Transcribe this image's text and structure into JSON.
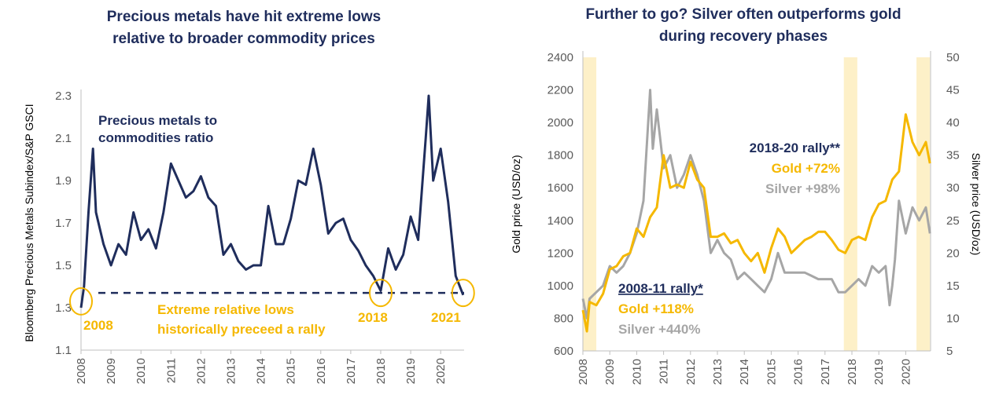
{
  "colors": {
    "navy": "#1f2d5c",
    "gold": "#f5b800",
    "silver": "#a6a6a6",
    "band": "#fdf0c8",
    "axis": "#bfbfbf"
  },
  "chart_data": [
    {
      "type": "line",
      "title": [
        "Precious metals have hit extreme lows",
        "relative to broader commodity prices"
      ],
      "ylabel": "Bloomberg Precious Metals Subindex/S&P GSCI",
      "ylim": [
        1.1,
        2.3
      ],
      "yticks": [
        "1.1",
        "1.3",
        "1.5",
        "1.7",
        "1.9",
        "2.1",
        "2.3"
      ],
      "xticks": [
        "2008",
        "2009",
        "2010",
        "2011",
        "2012",
        "2013",
        "2014",
        "2015",
        "2016",
        "2017",
        "2018",
        "2019",
        "2020"
      ],
      "grid": false,
      "series": [
        {
          "name": "Precious metals to commodities ratio",
          "color": "#1f2d5c",
          "x": [
            2008.0,
            2008.1,
            2008.25,
            2008.4,
            2008.5,
            2008.75,
            2009.0,
            2009.25,
            2009.5,
            2009.75,
            2010.0,
            2010.25,
            2010.5,
            2010.75,
            2011.0,
            2011.25,
            2011.5,
            2011.75,
            2012.0,
            2012.25,
            2012.5,
            2012.75,
            2013.0,
            2013.25,
            2013.5,
            2013.75,
            2014.0,
            2014.25,
            2014.5,
            2014.75,
            2015.0,
            2015.25,
            2015.5,
            2015.75,
            2016.0,
            2016.25,
            2016.5,
            2016.75,
            2017.0,
            2017.25,
            2017.5,
            2017.75,
            2018.0,
            2018.25,
            2018.5,
            2018.75,
            2019.0,
            2019.25,
            2019.5,
            2019.6,
            2019.75,
            2020.0,
            2020.25,
            2020.5,
            2020.75
          ],
          "y": [
            1.3,
            1.4,
            1.75,
            2.05,
            1.75,
            1.6,
            1.5,
            1.6,
            1.55,
            1.75,
            1.62,
            1.67,
            1.58,
            1.75,
            1.98,
            1.9,
            1.82,
            1.85,
            1.92,
            1.82,
            1.78,
            1.55,
            1.6,
            1.52,
            1.48,
            1.5,
            1.5,
            1.78,
            1.6,
            1.6,
            1.72,
            1.9,
            1.88,
            2.05,
            1.88,
            1.65,
            1.7,
            1.72,
            1.62,
            1.57,
            1.5,
            1.45,
            1.38,
            1.58,
            1.48,
            1.55,
            1.73,
            1.62,
            2.1,
            2.3,
            1.9,
            2.05,
            1.8,
            1.45,
            1.36
          ]
        }
      ],
      "reference_line": {
        "y": 1.37,
        "style": "dashed"
      },
      "annotations": {
        "series_label": [
          "Precious metals to",
          "commodities ratio"
        ],
        "lows_label": [
          "Extreme relative lows",
          "historically preceed a rally"
        ],
        "circles": [
          {
            "label": "2008",
            "x": 2008.0,
            "y": 1.33
          },
          {
            "label": "2018",
            "x": 2018.0,
            "y": 1.37
          },
          {
            "label": "2021",
            "x": 2020.75,
            "y": 1.37
          }
        ]
      }
    },
    {
      "type": "line",
      "title": [
        "Further to go? Silver often outperforms gold",
        "during recovery phases"
      ],
      "ylabel": "Gold price (USD/oz)",
      "y2label": "Silver price (USD/oz)",
      "ylim": [
        600,
        2400
      ],
      "y2lim": [
        5,
        50
      ],
      "yticks": [
        "600",
        "800",
        "1000",
        "1200",
        "1400",
        "1600",
        "1800",
        "2000",
        "2200",
        "2400"
      ],
      "y2ticks": [
        "5",
        "10",
        "15",
        "20",
        "25",
        "30",
        "35",
        "40",
        "45",
        "50"
      ],
      "xticks": [
        "2008",
        "2009",
        "2010",
        "2011",
        "2012",
        "2013",
        "2014",
        "2015",
        "2016",
        "2017",
        "2018",
        "2019",
        "2020"
      ],
      "grid": false,
      "shaded_periods": [
        [
          2008.0,
          2008.5
        ],
        [
          2017.7,
          2018.2
        ],
        [
          2020.4,
          2020.9
        ]
      ],
      "series": [
        {
          "name": "Gold",
          "axis": "left",
          "color": "#f5b800",
          "x": [
            2008.0,
            2008.15,
            2008.25,
            2008.5,
            2008.75,
            2009.0,
            2009.25,
            2009.5,
            2009.75,
            2010.0,
            2010.25,
            2010.5,
            2010.75,
            2011.0,
            2011.25,
            2011.5,
            2011.75,
            2012.0,
            2012.25,
            2012.5,
            2012.75,
            2013.0,
            2013.25,
            2013.5,
            2013.75,
            2014.0,
            2014.25,
            2014.5,
            2014.75,
            2015.0,
            2015.25,
            2015.5,
            2015.75,
            2016.0,
            2016.25,
            2016.5,
            2016.75,
            2017.0,
            2017.25,
            2017.5,
            2017.75,
            2018.0,
            2018.25,
            2018.5,
            2018.75,
            2019.0,
            2019.25,
            2019.5,
            2019.75,
            2020.0,
            2020.25,
            2020.5,
            2020.75,
            2020.9
          ],
          "y": [
            850,
            720,
            900,
            880,
            950,
            1100,
            1120,
            1180,
            1200,
            1350,
            1300,
            1420,
            1480,
            1800,
            1600,
            1620,
            1600,
            1760,
            1650,
            1600,
            1300,
            1300,
            1320,
            1260,
            1280,
            1200,
            1150,
            1200,
            1080,
            1230,
            1350,
            1300,
            1200,
            1240,
            1280,
            1300,
            1330,
            1330,
            1280,
            1220,
            1200,
            1280,
            1300,
            1280,
            1420,
            1500,
            1520,
            1650,
            1700,
            2050,
            1880,
            1800,
            1880,
            1750
          ]
        },
        {
          "name": "Silver",
          "axis": "right",
          "color": "#a6a6a6",
          "x": [
            2008.0,
            2008.15,
            2008.25,
            2008.5,
            2008.75,
            2009.0,
            2009.25,
            2009.5,
            2009.75,
            2010.0,
            2010.25,
            2010.5,
            2010.6,
            2010.75,
            2011.0,
            2011.25,
            2011.5,
            2011.75,
            2012.0,
            2012.25,
            2012.5,
            2012.75,
            2013.0,
            2013.25,
            2013.5,
            2013.75,
            2014.0,
            2014.25,
            2014.5,
            2014.75,
            2015.0,
            2015.25,
            2015.5,
            2015.75,
            2016.0,
            2016.25,
            2016.5,
            2016.75,
            2017.0,
            2017.25,
            2017.5,
            2017.75,
            2018.0,
            2018.25,
            2018.5,
            2018.75,
            2019.0,
            2019.25,
            2019.4,
            2019.5,
            2019.6,
            2019.75,
            2020.0,
            2020.25,
            2020.5,
            2020.75,
            2020.9
          ],
          "y": [
            13,
            10,
            13,
            14,
            15,
            18,
            17,
            18,
            20,
            23,
            28,
            45,
            36,
            42,
            33,
            35,
            30,
            32,
            35,
            32,
            28,
            20,
            22,
            20,
            19,
            16,
            17,
            16,
            15,
            14,
            16,
            20,
            17,
            17,
            17,
            17,
            16.5,
            16,
            16,
            16,
            14,
            14,
            15,
            16,
            15,
            18,
            17,
            18,
            12,
            15,
            19,
            28,
            23,
            27,
            25,
            27,
            23
          ]
        }
      ],
      "annotations": {
        "rally_2018": {
          "title": "2018-20 rally**",
          "gold": "Gold +72%",
          "silver": "Silver +98%"
        },
        "rally_2008": {
          "title": "2008-11 rally*",
          "gold": "Gold +118%",
          "silver": "Silver +440%"
        }
      }
    }
  ]
}
